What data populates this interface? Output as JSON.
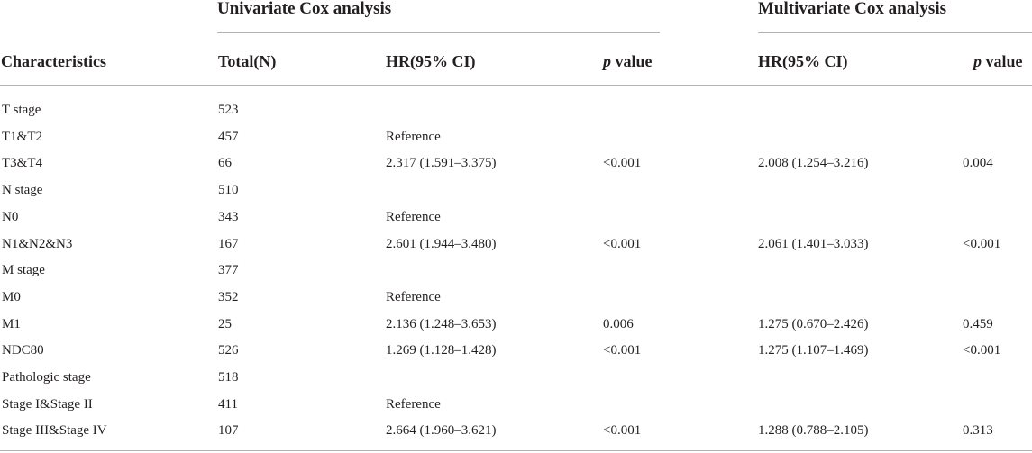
{
  "groups": {
    "univariate": "Univariate Cox analysis",
    "multivariate": "Multivariate Cox analysis"
  },
  "headers": {
    "characteristics": "Characteristics",
    "total": "Total(N)",
    "hr_uni": "HR(95% CI)",
    "p_uni_italic": "p",
    "p_uni_rest": " value",
    "hr_multi": "HR(95% CI)",
    "p_multi_italic": "p",
    "p_multi_rest": " value"
  },
  "rows": [
    {
      "characteristic": "T stage",
      "total": "523",
      "hr_uni": "",
      "p_uni": "",
      "hr_multi": "",
      "p_multi": ""
    },
    {
      "characteristic": "T1&T2",
      "total": "457",
      "hr_uni": "Reference",
      "p_uni": "",
      "hr_multi": "",
      "p_multi": ""
    },
    {
      "characteristic": "T3&T4",
      "total": "66",
      "hr_uni": "2.317 (1.591–3.375)",
      "p_uni": "<0.001",
      "hr_multi": "2.008 (1.254–3.216)",
      "p_multi": "0.004"
    },
    {
      "characteristic": "N stage",
      "total": "510",
      "hr_uni": "",
      "p_uni": "",
      "hr_multi": "",
      "p_multi": ""
    },
    {
      "characteristic": "N0",
      "total": "343",
      "hr_uni": "Reference",
      "p_uni": "",
      "hr_multi": "",
      "p_multi": ""
    },
    {
      "characteristic": "N1&N2&N3",
      "total": "167",
      "hr_uni": "2.601 (1.944–3.480)",
      "p_uni": "<0.001",
      "hr_multi": "2.061 (1.401–3.033)",
      "p_multi": "<0.001"
    },
    {
      "characteristic": "M stage",
      "total": "377",
      "hr_uni": "",
      "p_uni": "",
      "hr_multi": "",
      "p_multi": ""
    },
    {
      "characteristic": "M0",
      "total": "352",
      "hr_uni": "Reference",
      "p_uni": "",
      "hr_multi": "",
      "p_multi": ""
    },
    {
      "characteristic": "M1",
      "total": "25",
      "hr_uni": "2.136 (1.248–3.653)",
      "p_uni": "0.006",
      "hr_multi": "1.275 (0.670–2.426)",
      "p_multi": "0.459"
    },
    {
      "characteristic": "NDC80",
      "total": "526",
      "hr_uni": "1.269 (1.128–1.428)",
      "p_uni": "<0.001",
      "hr_multi": "1.275 (1.107–1.469)",
      "p_multi": "<0.001"
    },
    {
      "characteristic": "Pathologic stage",
      "total": "518",
      "hr_uni": "",
      "p_uni": "",
      "hr_multi": "",
      "p_multi": ""
    },
    {
      "characteristic": "Stage I&Stage II",
      "total": "411",
      "hr_uni": "Reference",
      "p_uni": "",
      "hr_multi": "",
      "p_multi": ""
    },
    {
      "characteristic": "Stage III&Stage IV",
      "total": "107",
      "hr_uni": "2.664 (1.960–3.621)",
      "p_uni": "<0.001",
      "hr_multi": "1.288 (0.788–2.105)",
      "p_multi": "0.313"
    }
  ]
}
